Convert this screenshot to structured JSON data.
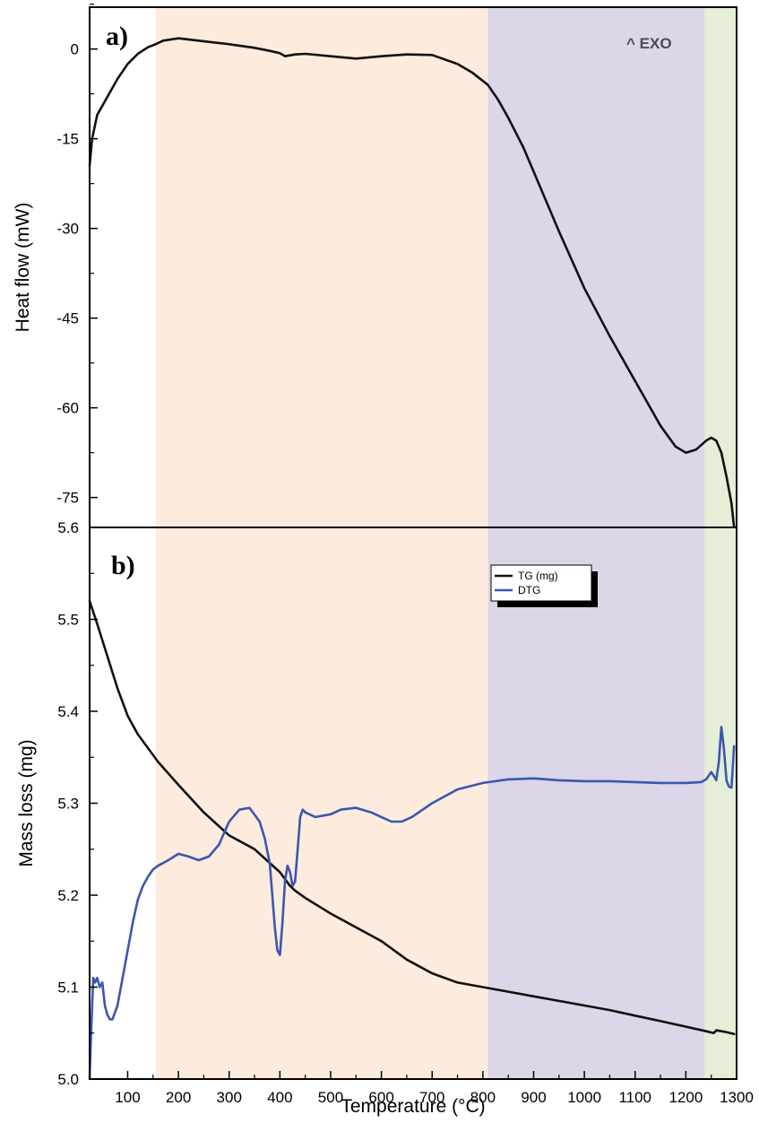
{
  "figure": {
    "temperature_axis_label": "Temperature (°C)"
  },
  "chart_data": [
    {
      "type": "line",
      "panel_label": "a)",
      "title": "",
      "xlabel": "Temperature (°C)",
      "ylabel": "Heat flow (mW)",
      "xlim": [
        25,
        1300
      ],
      "ylim": [
        -80,
        7
      ],
      "yticks": [
        0,
        -15,
        -30,
        -45,
        -60,
        -75
      ],
      "yticks_minor": [
        7.5,
        -7.5,
        -22.5,
        -37.5,
        -52.5,
        -67.5
      ],
      "grid": false,
      "annotation": "^ EXO",
      "regions": [
        {
          "x0": 155,
          "x1": 810,
          "color": "#fdebdd"
        },
        {
          "x0": 810,
          "x1": 1237,
          "color": "#ddd5e8"
        },
        {
          "x0": 1237,
          "x1": 1300,
          "color": "#e5eed7"
        }
      ],
      "series": [
        {
          "color": "#111111",
          "x": [
            25,
            30,
            40,
            50,
            60,
            80,
            100,
            120,
            140,
            155,
            170,
            200,
            230,
            260,
            300,
            350,
            380,
            400,
            410,
            430,
            450,
            500,
            550,
            600,
            650,
            700,
            750,
            780,
            810,
            830,
            850,
            880,
            900,
            950,
            1000,
            1050,
            1100,
            1150,
            1180,
            1200,
            1220,
            1240,
            1250,
            1260,
            1270,
            1280,
            1290,
            1295
          ],
          "y": [
            -19.5,
            -15,
            -11,
            -9.5,
            -8,
            -5,
            -2.5,
            -0.8,
            0.3,
            0.8,
            1.4,
            1.8,
            1.5,
            1.2,
            0.8,
            0.2,
            -0.3,
            -0.7,
            -1.2,
            -0.9,
            -0.8,
            -1.2,
            -1.6,
            -1.2,
            -0.9,
            -1.0,
            -2.5,
            -4.0,
            -6.0,
            -8.5,
            -11.5,
            -16.5,
            -20.5,
            -30.5,
            -40,
            -48,
            -55.5,
            -63,
            -66.5,
            -67.5,
            -67,
            -65.5,
            -65,
            -65.5,
            -67.5,
            -71.5,
            -76,
            -80
          ]
        }
      ]
    },
    {
      "type": "line",
      "panel_label": "b)",
      "title": "",
      "xlabel": "Temperature (°C)",
      "ylabel": "Mass loss (mg)",
      "xlim": [
        25,
        1300
      ],
      "ylim": [
        5.0,
        5.6
      ],
      "xticks": [
        100,
        200,
        300,
        400,
        500,
        600,
        700,
        800,
        900,
        1000,
        1100,
        1200,
        1300
      ],
      "yticks": [
        5.0,
        5.1,
        5.2,
        5.3,
        5.4,
        5.5,
        5.6
      ],
      "grid": false,
      "legend_position": "top-right",
      "regions": [
        {
          "x0": 155,
          "x1": 810,
          "color": "#fdebdd"
        },
        {
          "x0": 810,
          "x1": 1237,
          "color": "#ddd5e8"
        },
        {
          "x0": 1237,
          "x1": 1300,
          "color": "#e5eed7"
        }
      ],
      "series": [
        {
          "name": "TG (mg)",
          "color": "#111111",
          "x": [
            25,
            40,
            60,
            80,
            100,
            120,
            140,
            160,
            200,
            250,
            300,
            350,
            380,
            400,
            420,
            430,
            450,
            500,
            550,
            600,
            650,
            700,
            750,
            800,
            850,
            900,
            950,
            1000,
            1050,
            1100,
            1150,
            1200,
            1240,
            1255,
            1260,
            1270,
            1280,
            1295
          ],
          "y": [
            5.52,
            5.495,
            5.46,
            5.425,
            5.395,
            5.375,
            5.36,
            5.345,
            5.32,
            5.29,
            5.265,
            5.25,
            5.235,
            5.225,
            5.21,
            5.205,
            5.197,
            5.18,
            5.165,
            5.15,
            5.13,
            5.115,
            5.105,
            5.1,
            5.095,
            5.09,
            5.085,
            5.08,
            5.075,
            5.069,
            5.063,
            5.057,
            5.052,
            5.05,
            5.053,
            5.052,
            5.051,
            5.049
          ]
        },
        {
          "name": "DTG",
          "color": "#3a57b0",
          "x": [
            25,
            28,
            32,
            36,
            40,
            45,
            50,
            55,
            60,
            65,
            70,
            80,
            90,
            100,
            110,
            120,
            130,
            140,
            150,
            160,
            180,
            200,
            220,
            240,
            260,
            280,
            300,
            320,
            340,
            360,
            370,
            380,
            385,
            390,
            395,
            400,
            405,
            410,
            415,
            420,
            425,
            430,
            435,
            440,
            445,
            450,
            470,
            500,
            520,
            550,
            580,
            600,
            620,
            640,
            660,
            700,
            750,
            800,
            850,
            900,
            950,
            1000,
            1050,
            1100,
            1150,
            1200,
            1230,
            1240,
            1250,
            1255,
            1260,
            1265,
            1270,
            1275,
            1280,
            1285,
            1290,
            1295
          ],
          "y": [
            5.0,
            5.05,
            5.11,
            5.105,
            5.11,
            5.1,
            5.105,
            5.08,
            5.07,
            5.065,
            5.065,
            5.08,
            5.11,
            5.14,
            5.17,
            5.195,
            5.21,
            5.22,
            5.228,
            5.232,
            5.238,
            5.245,
            5.242,
            5.238,
            5.242,
            5.255,
            5.28,
            5.293,
            5.295,
            5.28,
            5.262,
            5.235,
            5.2,
            5.165,
            5.14,
            5.135,
            5.17,
            5.215,
            5.232,
            5.225,
            5.21,
            5.215,
            5.25,
            5.285,
            5.293,
            5.29,
            5.285,
            5.288,
            5.293,
            5.295,
            5.29,
            5.285,
            5.28,
            5.28,
            5.285,
            5.3,
            5.315,
            5.322,
            5.326,
            5.327,
            5.325,
            5.324,
            5.324,
            5.323,
            5.322,
            5.322,
            5.323,
            5.326,
            5.334,
            5.33,
            5.325,
            5.345,
            5.383,
            5.36,
            5.325,
            5.318,
            5.317,
            5.362
          ]
        }
      ]
    }
  ]
}
